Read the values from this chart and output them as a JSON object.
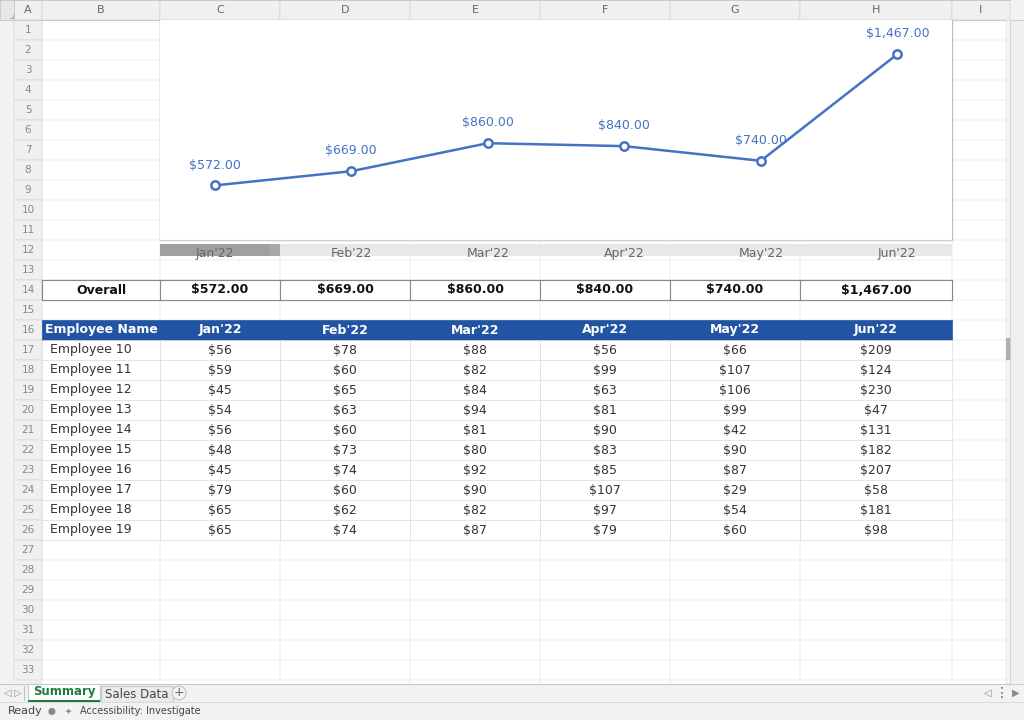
{
  "months": [
    "Jan'22",
    "Feb'22",
    "Mar'22",
    "Apr'22",
    "May'22",
    "Jun'22"
  ],
  "overall_values": [
    "$572.00",
    "$669.00",
    "$860.00",
    "$840.00",
    "$740.00",
    "$1,467.00"
  ],
  "overall_numeric": [
    572,
    669,
    860,
    840,
    740,
    1467
  ],
  "chart_labels": [
    "$572.00",
    "$669.00",
    "$860.00",
    "$840.00",
    "$740.00",
    "$1,467.00"
  ],
  "employees": [
    {
      "name": "Employee 10",
      "values": [
        56,
        78,
        88,
        56,
        66,
        209
      ]
    },
    {
      "name": "Employee 11",
      "values": [
        59,
        60,
        82,
        99,
        107,
        124
      ]
    },
    {
      "name": "Employee 12",
      "values": [
        45,
        65,
        84,
        63,
        106,
        230
      ]
    },
    {
      "name": "Employee 13",
      "values": [
        54,
        63,
        94,
        81,
        99,
        47
      ]
    },
    {
      "name": "Employee 14",
      "values": [
        56,
        60,
        81,
        90,
        42,
        131
      ]
    },
    {
      "name": "Employee 15",
      "values": [
        48,
        73,
        80,
        83,
        90,
        182
      ]
    },
    {
      "name": "Employee 16",
      "values": [
        45,
        74,
        92,
        85,
        87,
        207
      ]
    },
    {
      "name": "Employee 17",
      "values": [
        79,
        60,
        90,
        107,
        29,
        58
      ]
    },
    {
      "name": "Employee 18",
      "values": [
        65,
        62,
        82,
        97,
        54,
        181
      ]
    },
    {
      "name": "Employee 19",
      "values": [
        65,
        74,
        87,
        79,
        60,
        98
      ]
    }
  ],
  "bg_color": "#f2f2f2",
  "chart_line_color": "#4472c4",
  "header_bg": "#2155a3",
  "col_header_bg": "#e8e8e8",
  "col_header_text": "#666666",
  "row_header_bg": "#e8e8e8",
  "row_header_text": "#888888",
  "grid_color": "#d8d8d8",
  "cell_border": "#c8c8c8",
  "overall_border": "#888888",
  "tab_green": "#1f7a3e",
  "scrollbar_thumb": "#a0a0a0",
  "status_bg": "#f2f2f2",
  "status_text": "#444444"
}
